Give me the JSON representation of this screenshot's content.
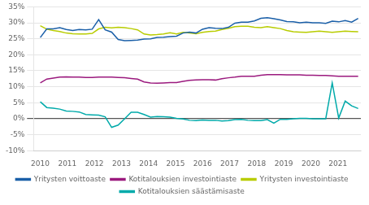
{
  "chart_data": {
    "type": "line",
    "x": [
      2010,
      2010.239796,
      2010.479592,
      2010.719388,
      2010.959184,
      2011.19898,
      2011.438776,
      2011.678571,
      2011.918367,
      2012.158163,
      2012.397959,
      2012.637755,
      2012.877551,
      2013.117347,
      2013.357143,
      2013.596939,
      2013.836735,
      2014.076531,
      2014.316327,
      2014.556122,
      2014.795918,
      2015.035714,
      2015.27551,
      2015.515306,
      2015.755102,
      2015.994898,
      2016.234694,
      2016.47449,
      2016.714286,
      2016.954082,
      2017.193878,
      2017.433673,
      2017.673469,
      2017.913265,
      2018.153061,
      2018.392857,
      2018.632653,
      2018.872449,
      2019.112245,
      2019.352041,
      2019.591837,
      2019.831633,
      2020.071429,
      2020.311224,
      2020.55102,
      2020.790816,
      2021.030612,
      2021.270408,
      2021.510204,
      2021.75
    ],
    "series": [
      {
        "name": "Yritysten voittoaste",
        "color": "#1a5fa8",
        "values": [
          0.254,
          0.281,
          0.281,
          0.285,
          0.279,
          0.276,
          0.279,
          0.278,
          0.28,
          0.31,
          0.278,
          0.271,
          0.248,
          0.244,
          0.245,
          0.246,
          0.249,
          0.25,
          0.254,
          0.255,
          0.257,
          0.258,
          0.268,
          0.271,
          0.268,
          0.28,
          0.285,
          0.283,
          0.282,
          0.286,
          0.299,
          0.302,
          0.302,
          0.306,
          0.314,
          0.316,
          0.313,
          0.309,
          0.304,
          0.303,
          0.3,
          0.302,
          0.3,
          0.3,
          0.298,
          0.305,
          0.303,
          0.307,
          0.302,
          0.314
        ]
      },
      {
        "name": "Kotitalouksien investointiaste",
        "color": "#9b1a7e",
        "values": [
          0.112,
          0.124,
          0.127,
          0.13,
          0.131,
          0.13,
          0.13,
          0.129,
          0.129,
          0.13,
          0.13,
          0.13,
          0.129,
          0.128,
          0.126,
          0.124,
          0.115,
          0.112,
          0.111,
          0.112,
          0.113,
          0.113,
          0.117,
          0.12,
          0.121,
          0.122,
          0.122,
          0.121,
          0.125,
          0.128,
          0.13,
          0.133,
          0.133,
          0.133,
          0.136,
          0.138,
          0.138,
          0.138,
          0.137,
          0.137,
          0.137,
          0.136,
          0.136,
          0.135,
          0.135,
          0.134,
          0.133,
          0.133,
          0.133,
          0.133
        ]
      },
      {
        "name": "Yritysten investointiaste",
        "color": "#b8cc00",
        "values": [
          0.291,
          0.28,
          0.276,
          0.273,
          0.268,
          0.266,
          0.265,
          0.265,
          0.267,
          0.281,
          0.286,
          0.284,
          0.286,
          0.285,
          0.282,
          0.278,
          0.265,
          0.262,
          0.263,
          0.265,
          0.269,
          0.265,
          0.27,
          0.268,
          0.266,
          0.27,
          0.273,
          0.274,
          0.279,
          0.283,
          0.288,
          0.289,
          0.289,
          0.286,
          0.285,
          0.288,
          0.285,
          0.282,
          0.276,
          0.272,
          0.271,
          0.27,
          0.272,
          0.274,
          0.272,
          0.27,
          0.272,
          0.274,
          0.273,
          0.272
        ]
      },
      {
        "name": "Kotitalouksien säästämisaste",
        "color": "#00aaaa",
        "values": [
          0.053,
          0.035,
          0.033,
          0.03,
          0.024,
          0.023,
          0.021,
          0.013,
          0.012,
          0.011,
          0.006,
          -0.027,
          -0.02,
          0.0,
          0.02,
          0.02,
          0.013,
          0.005,
          0.007,
          0.006,
          0.005,
          0.001,
          -0.001,
          -0.005,
          -0.006,
          -0.004,
          -0.005,
          -0.005,
          -0.007,
          -0.006,
          -0.003,
          -0.002,
          -0.005,
          -0.006,
          -0.006,
          -0.003,
          -0.014,
          -0.002,
          -0.002,
          0.0,
          0.001,
          0.001,
          0.0,
          0.0,
          0.0,
          0.112,
          0.002,
          0.055,
          0.04,
          0.032
        ]
      }
    ],
    "xlim": [
      2009.75,
      2021.85
    ],
    "xticks": [
      2010,
      2011,
      2012,
      2013,
      2014,
      2015,
      2016,
      2017,
      2018,
      2019,
      2020,
      2021
    ],
    "ylim": [
      -0.1,
      0.35
    ],
    "yticks": [
      {
        "value": -0.1,
        "label": "-10%"
      },
      {
        "value": -0.05,
        "label": "-5%"
      },
      {
        "value": 0,
        "label": "0%"
      },
      {
        "value": 0.05,
        "label": "5%"
      },
      {
        "value": 0.1,
        "label": "10%"
      },
      {
        "value": 0.15,
        "label": "15%"
      },
      {
        "value": 0.2,
        "label": "20%"
      },
      {
        "value": 0.25,
        "label": "25%"
      },
      {
        "value": 0.3,
        "label": "30%"
      },
      {
        "value": 0.35,
        "label": "35%"
      }
    ],
    "grid": "y",
    "legend": "bottom"
  }
}
